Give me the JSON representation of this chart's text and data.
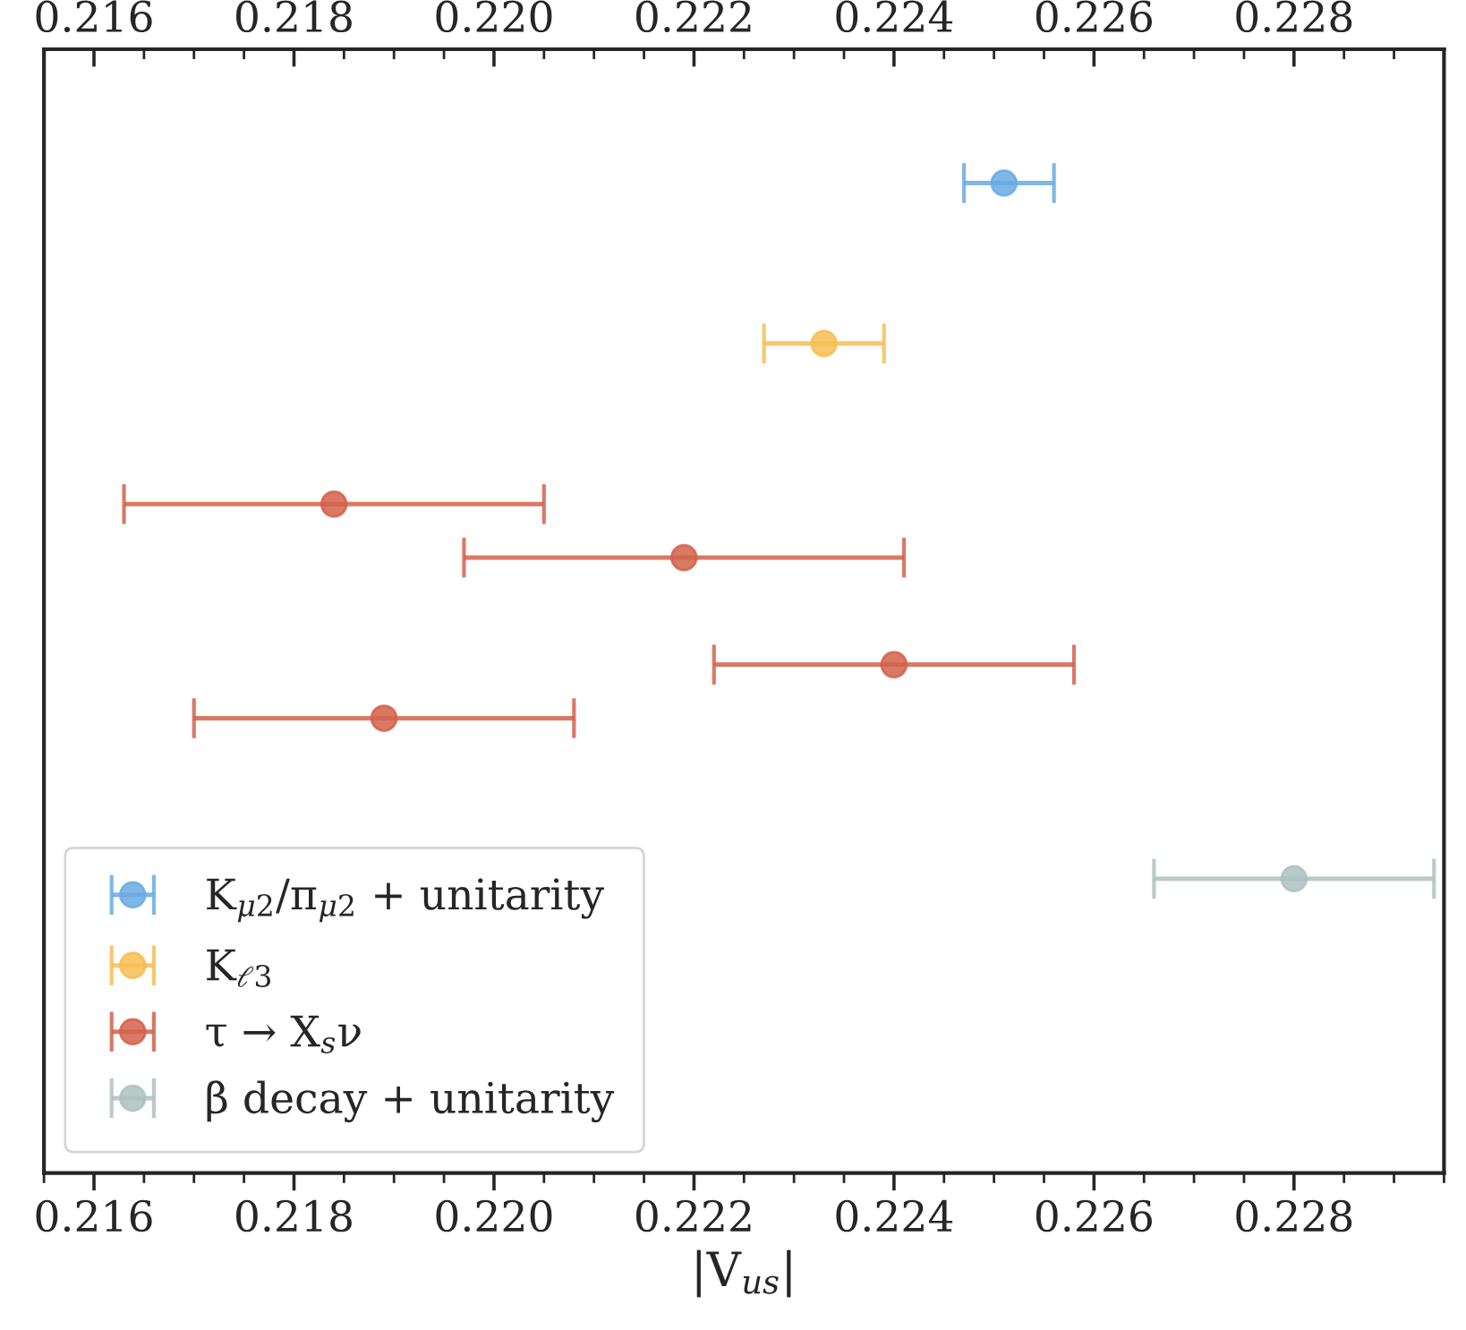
{
  "chart_data": {
    "type": "scatter",
    "orientation": "horizontal",
    "xlabel": "|V$_{us}$|",
    "categories": [
      null,
      null,
      null,
      null,
      null,
      null,
      null,
      null,
      null,
      null,
      null,
      null,
      null,
      null,
      null,
      null,
      null,
      null,
      null,
      null,
      null
    ],
    "series": [
      {
        "name": "K$_{μ2}$/π$_{μ2}$ + unitarity",
        "color": "#6aaae4",
        "values": [
          null,
          null,
          0.2251,
          null,
          null,
          null,
          null,
          null,
          null,
          null,
          null,
          null,
          null,
          null,
          null,
          null,
          null,
          null,
          null,
          null,
          null
        ],
        "errors": [
          null,
          null,
          [
            0.2247,
            0.2256
          ],
          null,
          null,
          null,
          null,
          null,
          null,
          null,
          null,
          null,
          null,
          null,
          null,
          null,
          null,
          null,
          null,
          null,
          null
        ]
      },
      {
        "name": "K$_{ℓ3}$",
        "color": "#f8bd52",
        "values": [
          null,
          null,
          null,
          null,
          null,
          0.2233,
          null,
          null,
          null,
          null,
          null,
          null,
          null,
          null,
          null,
          null,
          null,
          null,
          null,
          null,
          null
        ],
        "errors": [
          null,
          null,
          null,
          null,
          null,
          [
            0.2227,
            0.2239
          ],
          null,
          null,
          null,
          null,
          null,
          null,
          null,
          null,
          null,
          null,
          null,
          null,
          null,
          null,
          null
        ]
      },
      {
        "name": "τ → X$_{s}$ν",
        "color": "#d2624a",
        "values": [
          null,
          null,
          null,
          null,
          null,
          null,
          null,
          null,
          0.2184,
          0.2219,
          null,
          0.224,
          0.2189,
          null,
          null,
          null,
          null,
          null,
          null,
          null,
          null
        ],
        "errors": [
          null,
          null,
          null,
          null,
          null,
          null,
          null,
          null,
          [
            0.2163,
            0.2205
          ],
          [
            0.2197,
            0.2241
          ],
          null,
          [
            0.2222,
            0.2258
          ],
          [
            0.217,
            0.2208
          ],
          null,
          null,
          null,
          null,
          null,
          null,
          null,
          null
        ]
      },
      {
        "name": "β decay + unitarity",
        "color": "#adc2bf",
        "values": [
          null,
          null,
          null,
          null,
          null,
          null,
          null,
          null,
          null,
          null,
          null,
          null,
          null,
          null,
          null,
          0.228,
          null,
          null,
          null,
          null,
          null
        ],
        "errors": [
          null,
          null,
          null,
          null,
          null,
          null,
          null,
          null,
          null,
          null,
          null,
          null,
          null,
          null,
          null,
          [
            0.2266,
            0.2294
          ],
          null,
          null,
          null,
          null,
          null
        ]
      }
    ],
    "xlim": [
      0.2155,
      0.2295
    ],
    "xticks": [
      0.216,
      0.218,
      {
        "value": 0.22,
        "label": "0.220"
      },
      0.222,
      0.224,
      0.226,
      0.228
    ],
    "x2lim": [
      0.2155,
      0.2295
    ],
    "x2ticks": [
      0.216,
      0.218,
      {
        "value": 0.22,
        "label": "0.220"
      },
      0.222,
      0.224,
      0.226,
      0.228
    ],
    "tick_labels": "x",
    "legend": "bottom left",
    "marker": "circle",
    "grid": false
  }
}
